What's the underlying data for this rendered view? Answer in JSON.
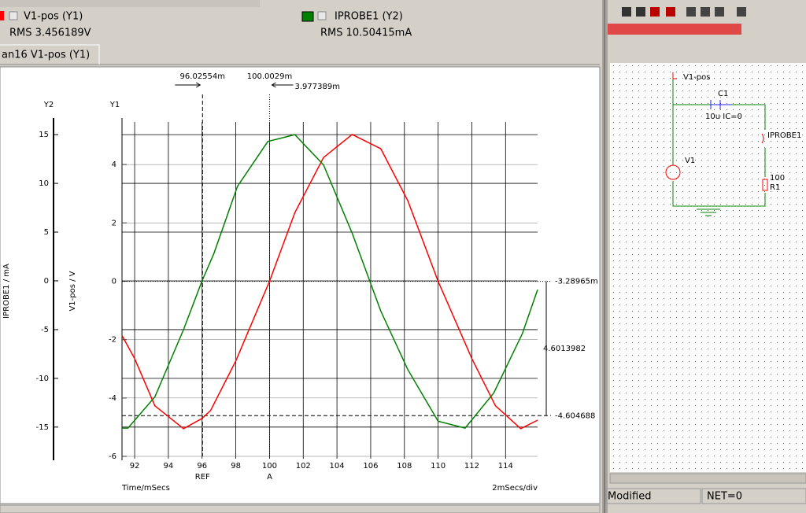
{
  "tab": "an16 V1-pos (Y1)",
  "rms_labels": [
    "RMS  3.456189V",
    "RMS  10.50415mA"
  ],
  "chart_data": {
    "type": "line",
    "x_label": "Time/mSecs",
    "x_scale_label": "2mSecs/div",
    "y_axis_name": "Y1",
    "y2_axis_name": "Y2",
    "y_label": "V1-pos / V",
    "y2_label": "IPROBE1 / mA",
    "xlim": [
      91.25,
      115.9
    ],
    "xticks": [
      92,
      94,
      96,
      98,
      100,
      102,
      104,
      106,
      108,
      110,
      112,
      114
    ],
    "ylim": [
      -6,
      5.46
    ],
    "yticks": [
      -6,
      -4,
      -2,
      0,
      2,
      4
    ],
    "y2lim": [
      -18,
      16.3
    ],
    "y2ticks": [
      -15,
      -10,
      -5,
      0,
      5,
      10,
      15
    ],
    "grid": true,
    "series": [
      {
        "name": "V1-pos (Y1)",
        "color": "#ff0000",
        "x": [
          91.25,
          92,
          93.2,
          94.9,
          96,
          96.5,
          98,
          100,
          101.5,
          103.2,
          104.9,
          106.6,
          108.2,
          110,
          112,
          113.4,
          114.9,
          115.9
        ],
        "values": [
          -1.86,
          -2.65,
          -4.27,
          -5.05,
          -4.7,
          -4.43,
          -2.73,
          0,
          2.35,
          4.24,
          5.03,
          4.54,
          2.76,
          0,
          -2.65,
          -4.27,
          -5.05,
          -4.76
        ]
      },
      {
        "name": "IPROBE1 (Y2)",
        "color": "#008000",
        "axis": "y2",
        "x": [
          91.25,
          91.6,
          93.2,
          94.9,
          96,
          96.7,
          98.1,
          99.9,
          101.5,
          103.2,
          104.9,
          106.6,
          108.2,
          110,
          111.6,
          113.3,
          115,
          115.9
        ],
        "values": [
          -15.1,
          -15.1,
          -11.9,
          -5,
          0,
          2.8,
          9.7,
          14.3,
          15,
          11.9,
          4.9,
          -3.1,
          -9.1,
          -14.4,
          -15.1,
          -11.5,
          -5.4,
          -0.9
        ]
      }
    ],
    "cursors": [
      {
        "label": "96.02554m",
        "value": 96.02554,
        "marker": "REF"
      },
      {
        "label": "100.0029m",
        "value": 100.0029,
        "marker": "A"
      }
    ],
    "x_delta_label": "3.977389m",
    "hcursors": [
      {
        "label": "-3.28965m",
        "value": -0.00328965
      },
      {
        "label": "-4.604688",
        "value": -4.604688
      }
    ],
    "y_delta_label": "4.6013982"
  },
  "schematic": {
    "labels": [
      "V1-pos",
      "C1",
      "10u IC=0",
      "IPROBE1",
      "V1",
      "100",
      "R1"
    ]
  },
  "status": [
    "Modified",
    "NET=0"
  ]
}
